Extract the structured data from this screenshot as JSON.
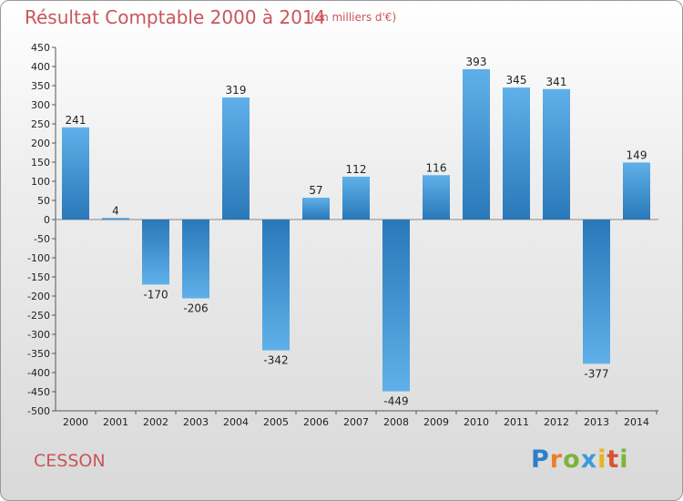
{
  "header": {
    "title": "Résultat Comptable 2000 à 2014",
    "subtitle": "(en milliers d'€)"
  },
  "footer": {
    "commune": "CESSON",
    "logo_letters": [
      "P",
      "r",
      "o",
      "x",
      "i",
      "t",
      "i"
    ]
  },
  "colors": {
    "title": "#c8565b",
    "bar_light": "#5fb0ea",
    "bar_dark": "#2a78b8"
  },
  "chart_data": {
    "type": "bar",
    "title": "Résultat Comptable 2000 à 2014",
    "xlabel": "",
    "ylabel": "",
    "ylim": [
      -500,
      450
    ],
    "ytick_step": 50,
    "grid": false,
    "categories": [
      "2000",
      "2001",
      "2002",
      "2003",
      "2004",
      "2005",
      "2006",
      "2007",
      "2008",
      "2009",
      "2010",
      "2011",
      "2012",
      "2013",
      "2014"
    ],
    "values": [
      241,
      4,
      -170,
      -206,
      319,
      -342,
      57,
      112,
      -449,
      116,
      393,
      345,
      341,
      -377,
      149
    ]
  }
}
